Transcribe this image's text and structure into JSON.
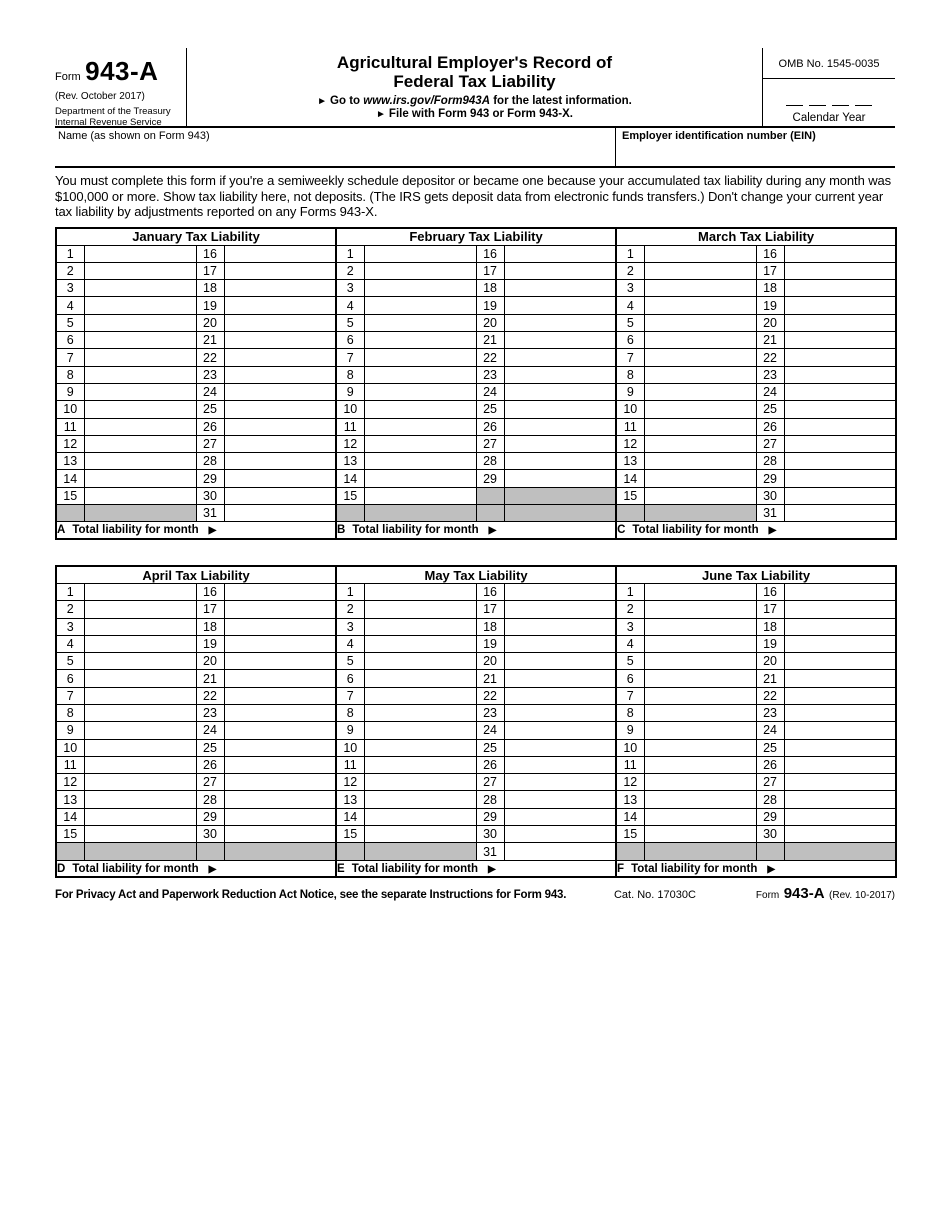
{
  "header": {
    "form_word": "Form",
    "form_number": "943-A",
    "revision": "(Rev. October 2017)",
    "dept_line1": "Department of the Treasury",
    "dept_line2": "Internal Revenue Service",
    "title_line1": "Agricultural Employer's Record of",
    "title_line2": "Federal Tax Liability",
    "goto_arrow": "►",
    "goto_prefix": "Go to",
    "goto_url": "www.irs.gov/Form943A",
    "goto_suffix": "for the latest information.",
    "file_arrow": "►",
    "file_text": "File with Form 943 or Form 943-X.",
    "omb": "OMB No. 1545-0035",
    "calendar_year_label": "Calendar Year"
  },
  "identity": {
    "name_label": "Name (as shown on Form 943)",
    "ein_label": "Employer identification number (EIN)"
  },
  "instructions": "You must complete this form if you're a semiweekly schedule depositor or became one because your accumulated tax liability during any month was $100,000 or more. Show tax liability here, not deposits. (The IRS gets deposit data from electronic funds transfers.) Don't change your current year tax liability by adjustments reported on any Forms 943-X.",
  "table": {
    "total_label": "Total liability for month",
    "arrow": "▶",
    "gray_color": "#bfbfbf"
  },
  "months": [
    {
      "title": "January Tax Liability",
      "letter": "A",
      "left_days": [
        1,
        2,
        3,
        4,
        5,
        6,
        7,
        8,
        9,
        10,
        11,
        12,
        13,
        14,
        15
      ],
      "right_days": [
        16,
        17,
        18,
        19,
        20,
        21,
        22,
        23,
        24,
        25,
        26,
        27,
        28,
        29,
        30,
        31
      ]
    },
    {
      "title": "February Tax Liability",
      "letter": "B",
      "left_days": [
        1,
        2,
        3,
        4,
        5,
        6,
        7,
        8,
        9,
        10,
        11,
        12,
        13,
        14,
        15
      ],
      "right_days": [
        16,
        17,
        18,
        19,
        20,
        21,
        22,
        23,
        24,
        25,
        26,
        27,
        28,
        29,
        null,
        null
      ]
    },
    {
      "title": "March Tax Liability",
      "letter": "C",
      "left_days": [
        1,
        2,
        3,
        4,
        5,
        6,
        7,
        8,
        9,
        10,
        11,
        12,
        13,
        14,
        15
      ],
      "right_days": [
        16,
        17,
        18,
        19,
        20,
        21,
        22,
        23,
        24,
        25,
        26,
        27,
        28,
        29,
        30,
        31
      ]
    },
    {
      "title": "April Tax Liability",
      "letter": "D",
      "left_days": [
        1,
        2,
        3,
        4,
        5,
        6,
        7,
        8,
        9,
        10,
        11,
        12,
        13,
        14,
        15
      ],
      "right_days": [
        16,
        17,
        18,
        19,
        20,
        21,
        22,
        23,
        24,
        25,
        26,
        27,
        28,
        29,
        30,
        null
      ]
    },
    {
      "title": "May Tax Liability",
      "letter": "E",
      "left_days": [
        1,
        2,
        3,
        4,
        5,
        6,
        7,
        8,
        9,
        10,
        11,
        12,
        13,
        14,
        15
      ],
      "right_days": [
        16,
        17,
        18,
        19,
        20,
        21,
        22,
        23,
        24,
        25,
        26,
        27,
        28,
        29,
        30,
        31
      ]
    },
    {
      "title": "June Tax Liability",
      "letter": "F",
      "left_days": [
        1,
        2,
        3,
        4,
        5,
        6,
        7,
        8,
        9,
        10,
        11,
        12,
        13,
        14,
        15
      ],
      "right_days": [
        16,
        17,
        18,
        19,
        20,
        21,
        22,
        23,
        24,
        25,
        26,
        27,
        28,
        29,
        30,
        null
      ]
    }
  ],
  "footer": {
    "privacy": "For Privacy Act and Paperwork Reduction Act Notice, see the separate Instructions for Form 943.",
    "cat_no": "Cat. No. 17030C",
    "form_word": "Form",
    "form_number": "943-A",
    "revision": "(Rev. 10-2017)"
  }
}
